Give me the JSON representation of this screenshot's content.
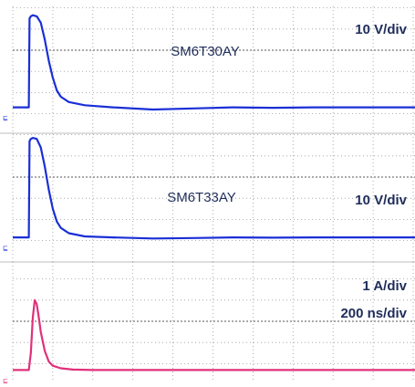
{
  "chart_data": [
    {
      "type": "line",
      "title": "SM6T30AY",
      "scale_label": "10 V/div",
      "color": "#1a2fd6",
      "x_unit_per_div": "200 ns",
      "grid": true,
      "description_of_trace": "voltage clamp waveform",
      "x": [
        0.0,
        0.4,
        0.42,
        0.45,
        0.5,
        0.6,
        0.7,
        0.8,
        0.9,
        1.0,
        1.1,
        1.2,
        1.4,
        1.8,
        2.5,
        3.5,
        4.5,
        5.5,
        6.5,
        7.5,
        8.5,
        9.5,
        10.4
      ],
      "values": [
        -2.7,
        -2.7,
        1.5,
        1.6,
        1.65,
        1.6,
        1.3,
        0.5,
        -0.5,
        -1.3,
        -1.9,
        -2.2,
        -2.45,
        -2.6,
        -2.7,
        -2.8,
        -2.75,
        -2.7,
        -2.72,
        -2.7,
        -2.7,
        -2.7,
        -2.7
      ]
    },
    {
      "type": "line",
      "title": "SM6T33AY",
      "scale_label": "10 V/div",
      "color": "#1a2fd6",
      "x_unit_per_div": "200 ns",
      "grid": true,
      "x": [
        0.0,
        0.4,
        0.42,
        0.45,
        0.5,
        0.6,
        0.7,
        0.8,
        0.9,
        1.0,
        1.1,
        1.2,
        1.4,
        1.8,
        2.5,
        3.5,
        4.5,
        5.5,
        6.5,
        7.5,
        8.5,
        9.5,
        10.4
      ],
      "values": [
        -2.85,
        -2.85,
        1.7,
        1.8,
        1.85,
        1.8,
        1.4,
        0.5,
        -0.6,
        -1.5,
        -2.1,
        -2.4,
        -2.65,
        -2.8,
        -2.85,
        -2.9,
        -2.88,
        -2.85,
        -2.86,
        -2.85,
        -2.85,
        -2.85,
        -2.85
      ]
    },
    {
      "type": "line",
      "title": "",
      "scale_label": "1 A/div",
      "time_label": "200 ns/div",
      "color": "#e0307a",
      "x_unit_per_div": "200 ns",
      "grid": true,
      "x": [
        0.0,
        0.4,
        0.45,
        0.5,
        0.55,
        0.6,
        0.65,
        0.7,
        0.8,
        0.9,
        1.0,
        1.2,
        1.5,
        2.0,
        3.0,
        4.0,
        5.0,
        6.0,
        7.0,
        8.0,
        9.0,
        10.4
      ],
      "values": [
        -2.3,
        -2.3,
        -1.5,
        0.2,
        1.0,
        0.8,
        0.2,
        -0.5,
        -1.4,
        -1.9,
        -2.1,
        -2.22,
        -2.28,
        -2.3,
        -2.3,
        -2.3,
        -2.3,
        -2.3,
        -2.3,
        -2.3,
        -2.3,
        -2.3
      ]
    }
  ],
  "labels": {
    "p1_scale": "10 V/div",
    "p1_name": "SM6T30AY",
    "p2_scale": "10 V/div",
    "p2_name": "SM6T33AY",
    "p3_scale": "1 A/div",
    "p3_time": "200 ns/div"
  }
}
